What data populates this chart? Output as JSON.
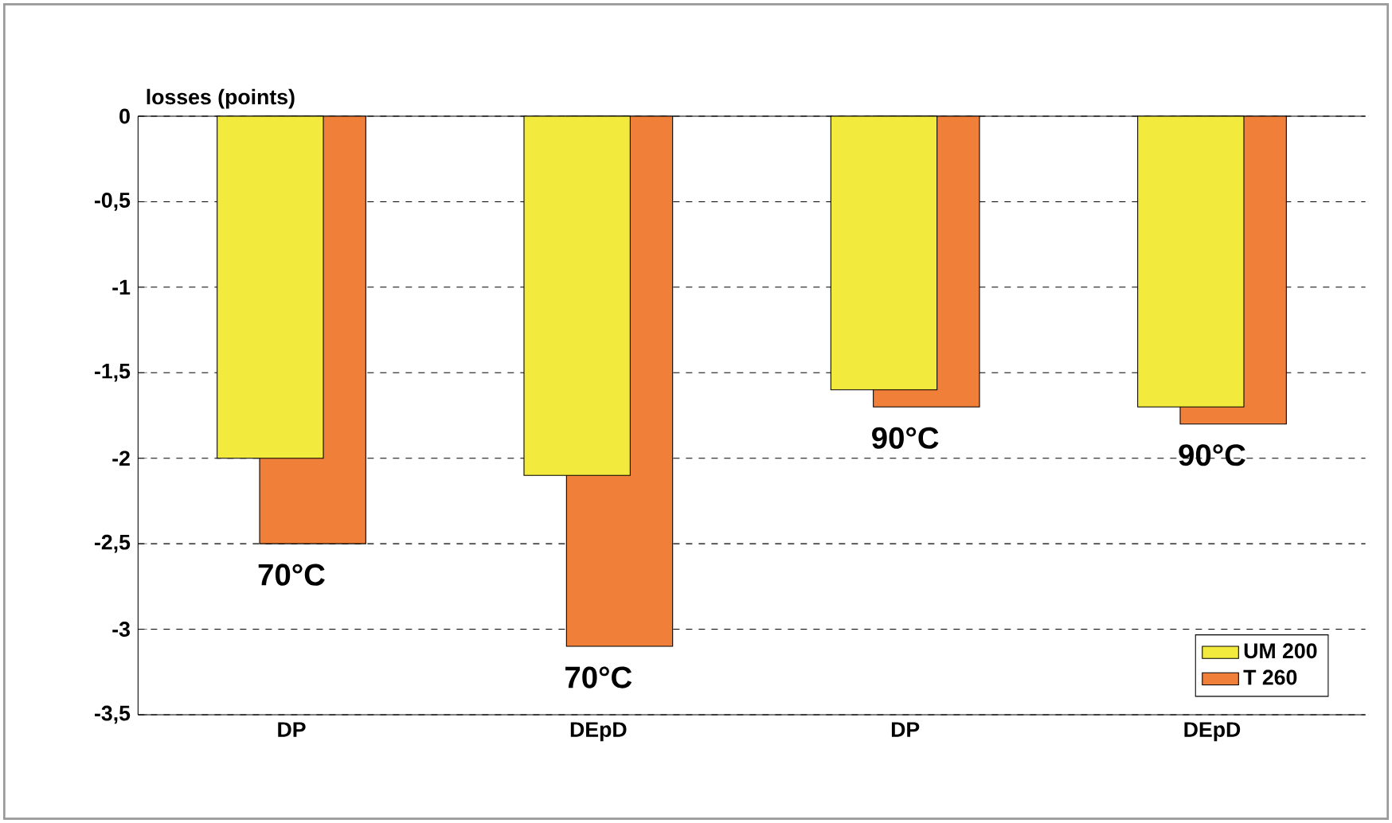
{
  "chart_data": {
    "type": "bar",
    "ylabel": "losses (points)",
    "categories": [
      "DP",
      "DEpD",
      "DP",
      "DEpD"
    ],
    "series": [
      {
        "name": "UM 200",
        "color": "#f2ea3c",
        "values": [
          -2,
          -2.1,
          -1.6,
          -1.7
        ]
      },
      {
        "name": "T 260",
        "color": "#f07f3a",
        "values": [
          -2.5,
          -3.1,
          -1.7,
          -1.8
        ]
      }
    ],
    "ylim": [
      -3.5,
      0
    ],
    "yticks": [
      {
        "value": -3.5,
        "label": "-3,5"
      },
      {
        "value": -3,
        "label": "-3"
      },
      {
        "value": -2.5,
        "label": "-2,5"
      },
      {
        "value": -2,
        "label": "-2"
      },
      {
        "value": -1.5,
        "label": "-1,5"
      },
      {
        "value": -1,
        "label": "-1"
      },
      {
        "value": -0.5,
        "label": "-0,5"
      },
      0
    ],
    "grid": "y",
    "legend": "bottom right",
    "annotations": [
      "70°C",
      "70°C",
      "90°C",
      "90°C"
    ]
  }
}
